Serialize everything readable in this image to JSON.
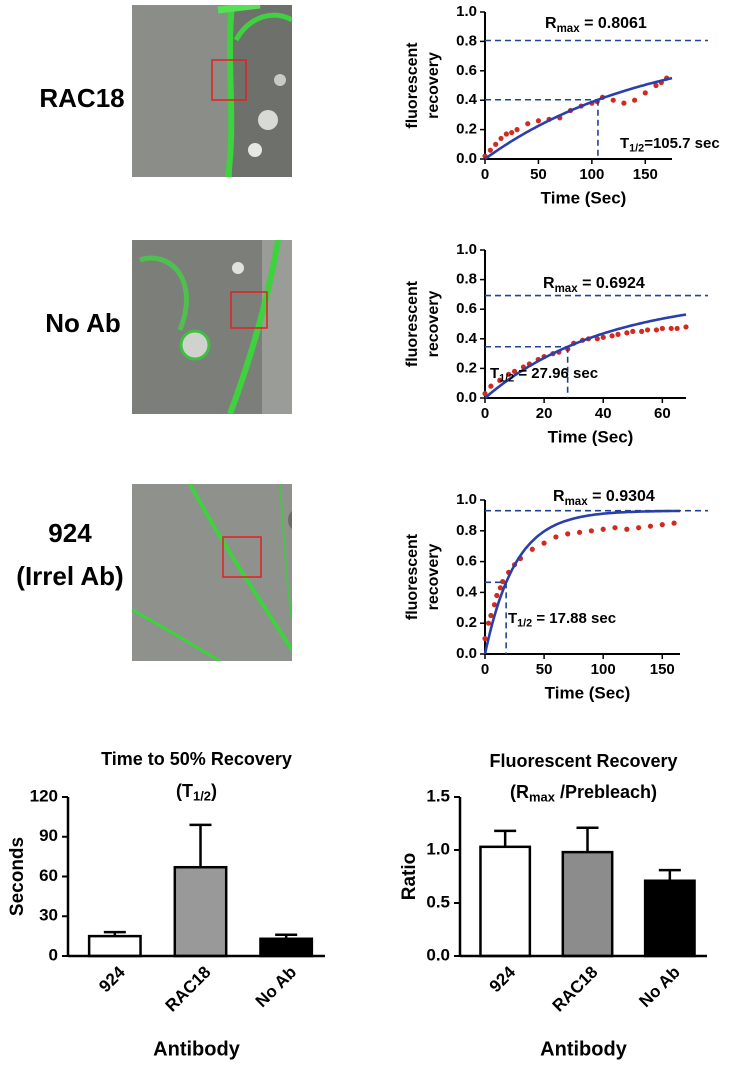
{
  "rows": [
    {
      "label": [
        "RAC18"
      ]
    },
    {
      "label": [
        "No Ab"
      ]
    },
    {
      "label": [
        "924",
        "(Irrel Ab)"
      ]
    }
  ],
  "chart_data": [
    {
      "type": "scatter",
      "ylabel": [
        "fluorescent",
        "recovery"
      ],
      "xlabel": "Time (Sec)",
      "xlim": [
        0,
        175
      ],
      "xticks": [
        0,
        50,
        100,
        150
      ],
      "ylim": [
        0,
        1.0
      ],
      "yticks": [
        {
          "value": 0,
          "label": "0.0"
        },
        0.2,
        0.4,
        0.6,
        0.8,
        {
          "value": 1,
          "label": "1.0"
        }
      ],
      "series": [
        {
          "color": "#d12b1f",
          "x": [
            0,
            5,
            10,
            15,
            20,
            25,
            30,
            40,
            50,
            60,
            70,
            80,
            90,
            100,
            105,
            110,
            120,
            130,
            140,
            150,
            160,
            165,
            170
          ],
          "values": [
            0.02,
            0.06,
            0.1,
            0.14,
            0.17,
            0.18,
            0.2,
            0.24,
            0.26,
            0.27,
            0.28,
            0.33,
            0.36,
            0.38,
            0.39,
            0.42,
            0.4,
            0.38,
            0.4,
            0.45,
            0.5,
            0.52,
            0.55
          ]
        }
      ],
      "fit": {
        "color": "#2a3fae",
        "rmax": 0.8061,
        "t_half": 105.7
      },
      "rmax_label": [
        "R",
        "max",
        " = "
      ],
      "t_half_label": [
        "T",
        "1/2",
        "=",
        " sec"
      ]
    },
    {
      "type": "scatter",
      "ylabel": [
        "fluorescent",
        "recovery"
      ],
      "xlabel": "Time (Sec)",
      "xlim": [
        0,
        68
      ],
      "xticks": [
        0,
        20,
        40,
        60
      ],
      "ylim": [
        0,
        1.0
      ],
      "yticks": [
        {
          "value": 0,
          "label": "0.0"
        },
        0.2,
        0.4,
        0.6,
        0.8,
        {
          "value": 1,
          "label": "1.0"
        }
      ],
      "series": [
        {
          "color": "#d12b1f",
          "x": [
            0,
            2,
            5,
            8,
            10,
            13,
            15,
            18,
            20,
            23,
            25,
            28,
            30,
            33,
            35,
            38,
            40,
            43,
            45,
            48,
            50,
            53,
            55,
            58,
            60,
            63,
            65,
            68
          ],
          "values": [
            0.03,
            0.08,
            0.12,
            0.16,
            0.18,
            0.21,
            0.23,
            0.26,
            0.28,
            0.3,
            0.31,
            0.33,
            0.37,
            0.39,
            0.4,
            0.4,
            0.41,
            0.42,
            0.43,
            0.44,
            0.45,
            0.45,
            0.46,
            0.46,
            0.47,
            0.47,
            0.47,
            0.48
          ]
        }
      ],
      "fit": {
        "color": "#2a3fae",
        "rmax": 0.6924,
        "t_half": 27.96
      },
      "rmax_label": [
        "R",
        "max",
        " = "
      ],
      "t_half_label": [
        "T",
        "1/2",
        " = ",
        " sec"
      ]
    },
    {
      "type": "scatter",
      "ylabel": [
        "fluorescent",
        "recovery"
      ],
      "xlabel": "Time (Sec)",
      "xlim": [
        0,
        165
      ],
      "xticks": [
        0,
        50,
        100,
        150
      ],
      "ylim": [
        0,
        1.0
      ],
      "yticks": [
        {
          "value": 0,
          "label": "0.0"
        },
        0.2,
        0.4,
        0.6,
        0.8,
        {
          "value": 1,
          "label": "1.0"
        }
      ],
      "series": [
        {
          "color": "#d12b1f",
          "x": [
            0,
            3,
            5,
            8,
            10,
            13,
            15,
            20,
            25,
            30,
            40,
            50,
            60,
            70,
            80,
            90,
            100,
            110,
            120,
            130,
            140,
            150,
            160
          ],
          "values": [
            0.1,
            0.2,
            0.25,
            0.32,
            0.38,
            0.43,
            0.47,
            0.53,
            0.58,
            0.62,
            0.68,
            0.72,
            0.76,
            0.78,
            0.79,
            0.8,
            0.81,
            0.82,
            0.81,
            0.82,
            0.83,
            0.84,
            0.85
          ]
        }
      ],
      "fit": {
        "color": "#2a3fae",
        "rmax": 0.9304,
        "t_half": 17.88
      },
      "rmax_label": [
        "R",
        "max",
        " = "
      ],
      "t_half_label": [
        "T",
        "1/2",
        " = ",
        " sec"
      ]
    },
    {
      "type": "bar",
      "title": "Time to 50% Recovery",
      "subtitle": [
        "(T",
        "1/2",
        ")"
      ],
      "ylabel": "Seconds",
      "xlabel": "Antibody",
      "categories": [
        "924",
        "RAC18",
        "No Ab"
      ],
      "values": [
        15,
        67,
        13
      ],
      "errors": [
        3,
        32,
        3
      ],
      "colors": [
        "#ffffff",
        "#999999",
        "#000000"
      ],
      "ylim": [
        0,
        120
      ],
      "yticks": [
        0,
        30,
        60,
        90,
        120
      ]
    },
    {
      "type": "bar",
      "title": "Fluorescent Recovery",
      "subtitle": [
        "(R",
        "max",
        " /Prebleach)"
      ],
      "ylabel": "Ratio",
      "xlabel": "Antibody",
      "categories": [
        "924",
        "RAC18",
        "No Ab"
      ],
      "values": [
        1.03,
        0.98,
        0.71
      ],
      "errors": [
        0.15,
        0.23,
        0.1
      ],
      "colors": [
        "#ffffff",
        "#8c8c8c",
        "#000000"
      ],
      "ylim": [
        0,
        1.5
      ],
      "yticks": [
        {
          "value": 0,
          "label": "0.0"
        },
        0.5,
        {
          "value": 1,
          "label": "1.0"
        },
        1.5
      ]
    }
  ]
}
